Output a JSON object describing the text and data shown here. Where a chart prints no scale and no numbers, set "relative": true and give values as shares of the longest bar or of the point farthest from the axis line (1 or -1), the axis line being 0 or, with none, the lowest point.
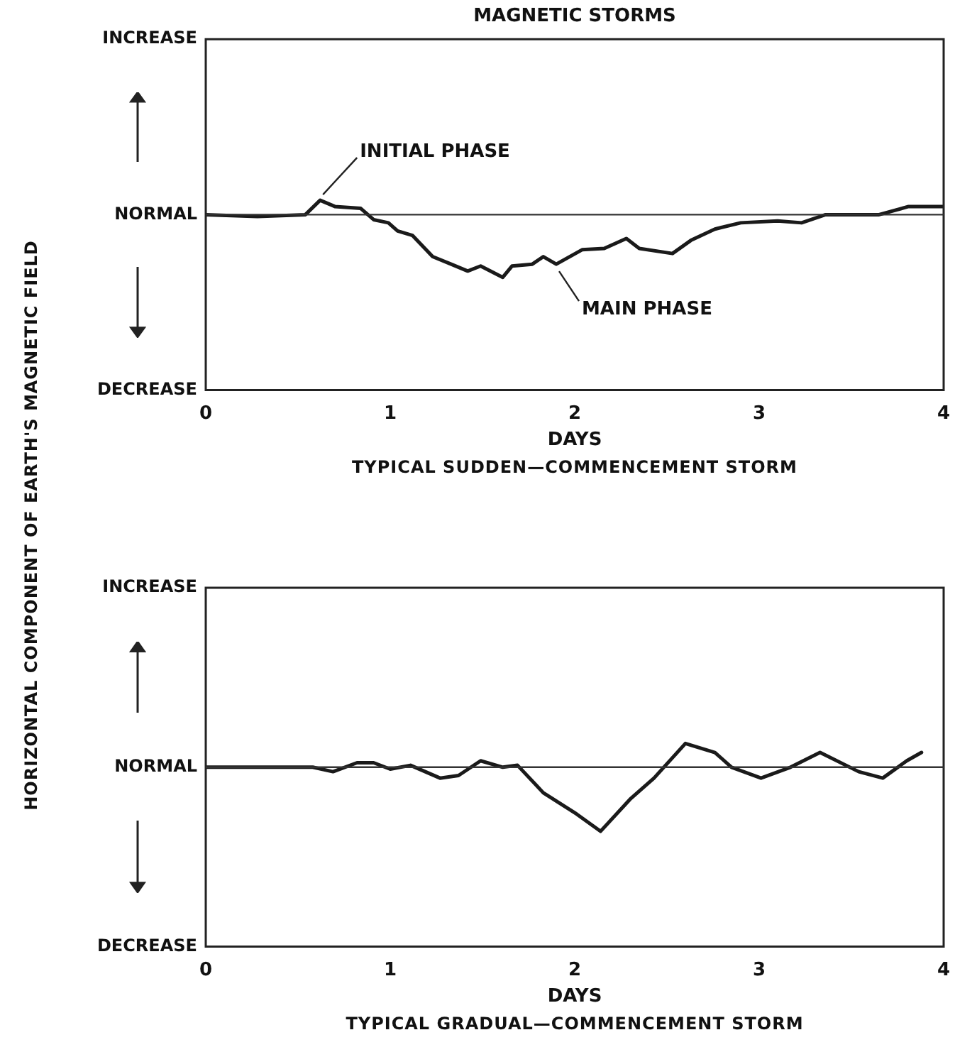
{
  "chart_data": [
    {
      "type": "line",
      "title": "MAGNETIC STORMS",
      "subtitle": "TYPICAL SUDDEN—COMMENCEMENT STORM",
      "xlabel": "DAYS",
      "ylabel": "HORIZONTAL COMPONENT OF EARTH'S MAGNETIC FIELD",
      "xlim": [
        0,
        4
      ],
      "xticks": [
        0,
        1,
        2,
        3,
        4
      ],
      "relative": true,
      "grid": false,
      "legend": false,
      "ref_lines": [
        {
          "axis": "y",
          "value": 0,
          "color": "#333333"
        }
      ],
      "annotations": [
        "INCREASE",
        "NORMAL",
        "DECREASE",
        {
          "text": "INITIAL PHASE",
          "x": 0.62,
          "y": 0.23
        },
        {
          "text": "MAIN PHASE",
          "x": 1.9,
          "y": -0.79
        }
      ],
      "series": [
        {
          "color": "#1a1a1a",
          "x": [
            0,
            0.28,
            0.54,
            0.62,
            0.7,
            0.84,
            0.91,
            0.99,
            1.04,
            1.12,
            1.23,
            1.33,
            1.42,
            1.49,
            1.61,
            1.66,
            1.77,
            1.83,
            1.9,
            2.04,
            2.16,
            2.28,
            2.35,
            2.53,
            2.63,
            2.76,
            2.9,
            3.1,
            3.23,
            3.36,
            3.65,
            3.81,
            4
          ],
          "values": [
            0,
            -0.03,
            0,
            0.23,
            0.13,
            0.1,
            -0.08,
            -0.13,
            -0.26,
            -0.33,
            -0.67,
            -0.79,
            -0.9,
            -0.82,
            -1,
            -0.82,
            -0.79,
            -0.67,
            -0.79,
            -0.56,
            -0.54,
            -0.38,
            -0.54,
            -0.62,
            -0.41,
            -0.23,
            -0.13,
            -0.1,
            -0.13,
            0,
            0,
            0.13,
            0.13
          ]
        }
      ]
    },
    {
      "type": "line",
      "subtitle": "TYPICAL GRADUAL—COMMENCEMENT STORM",
      "xlabel": "DAYS",
      "xlim": [
        0,
        4
      ],
      "xticks": [
        0,
        1,
        2,
        3,
        4
      ],
      "relative": true,
      "grid": false,
      "legend": false,
      "ref_lines": [
        {
          "axis": "y",
          "value": 0,
          "color": "#333333"
        }
      ],
      "annotations": [
        "INCREASE",
        "NORMAL",
        "DECREASE"
      ],
      "series": [
        {
          "color": "#1a1a1a",
          "x": [
            0,
            0.58,
            0.69,
            0.82,
            0.91,
            1,
            1.11,
            1.27,
            1.37,
            1.49,
            1.61,
            1.69,
            1.83,
            2.01,
            2.14,
            2.3,
            2.43,
            2.6,
            2.76,
            2.85,
            3.01,
            3.17,
            3.33,
            3.54,
            3.67,
            3.8,
            3.88
          ],
          "values": [
            0,
            0,
            -0.07,
            0.07,
            0.07,
            -0.03,
            0.03,
            -0.17,
            -0.13,
            0.1,
            0,
            0.03,
            -0.4,
            -0.73,
            -1,
            -0.5,
            -0.17,
            0.37,
            0.23,
            0,
            -0.17,
            0,
            0.23,
            -0.07,
            -0.17,
            0.1,
            0.23
          ]
        }
      ]
    }
  ]
}
